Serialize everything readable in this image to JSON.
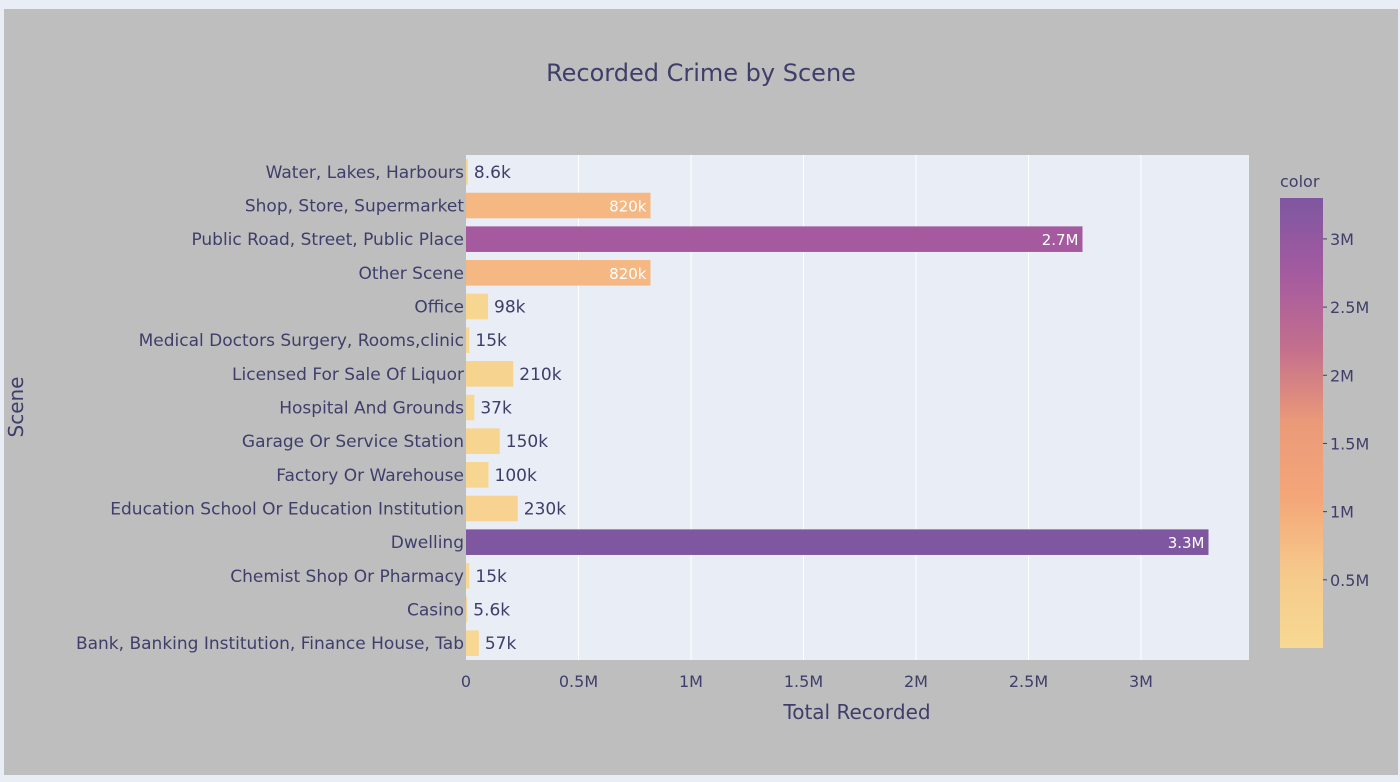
{
  "chart_data": {
    "type": "bar",
    "orientation": "horizontal",
    "title": "Recorded Crime by Scene",
    "xlabel": "Total Recorded",
    "ylabel": "Scene",
    "xlim": [
      0,
      3480000
    ],
    "x_ticks": [
      {
        "value": 0,
        "label": "0"
      },
      {
        "value": 500000,
        "label": "0.5M"
      },
      {
        "value": 1000000,
        "label": "1M"
      },
      {
        "value": 1500000,
        "label": "1.5M"
      },
      {
        "value": 2000000,
        "label": "2M"
      },
      {
        "value": 2500000,
        "label": "2.5M"
      },
      {
        "value": 3000000,
        "label": "3M"
      }
    ],
    "grid": true,
    "categories": [
      "Water, Lakes, Harbours",
      "Shop, Store, Supermarket",
      "Public Road, Street, Public Place",
      "Other Scene",
      "Office",
      "Medical Doctors Surgery, Rooms,clinic",
      "Licensed For Sale Of Liquor",
      "Hospital And Grounds",
      "Garage Or Service Station",
      "Factory Or Warehouse",
      "Education School Or Education Institution",
      "Dwelling",
      "Chemist Shop Or Pharmacy",
      "Casino",
      "Bank, Banking Institution, Finance House, Tab"
    ],
    "values": [
      8600,
      820000,
      2740000,
      820000,
      98000,
      15000,
      210000,
      37000,
      150000,
      100000,
      230000,
      3300000,
      15000,
      5600,
      57000
    ],
    "value_labels": [
      "8.6k",
      "820k",
      "2.7M",
      "820k",
      "98k",
      "15k",
      "210k",
      "37k",
      "150k",
      "100k",
      "230k",
      "3.3M",
      "15k",
      "5.6k",
      "57k"
    ],
    "colorbar": {
      "title": "color",
      "range": [
        0,
        3300000
      ],
      "ticks": [
        {
          "value": 500000,
          "label": "0.5M"
        },
        {
          "value": 1000000,
          "label": "1M"
        },
        {
          "value": 1500000,
          "label": "1.5M"
        },
        {
          "value": 2000000,
          "label": "2M"
        },
        {
          "value": 2500000,
          "label": "2.5M"
        },
        {
          "value": 3000000,
          "label": "3M"
        }
      ],
      "colors": [
        "#f7d993",
        "#f6c98b",
        "#f4a678",
        "#eb9a79",
        "#c36f8d",
        "#a45aa0",
        "#7e57a0"
      ]
    }
  }
}
